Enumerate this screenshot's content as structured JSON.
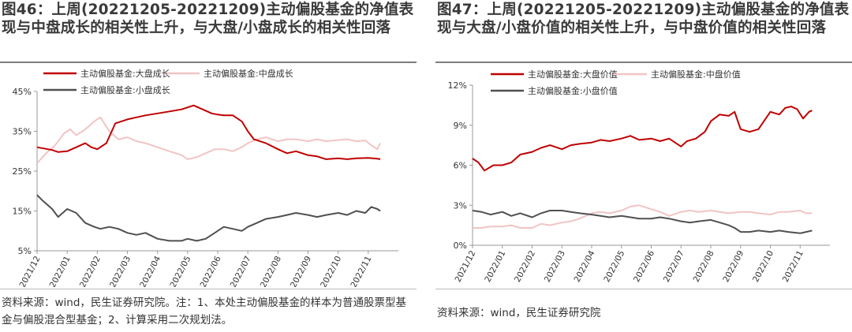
{
  "colors": {
    "large": "#c00000",
    "mid": "#f2c4c4",
    "small": "#505050",
    "axis": "#999999"
  },
  "figures": [
    {
      "title": "图46：上周(20221205-20221209)主动偏股基金的净值表现与中盘成长的相关性上升，与大盘/小盘成长的相关性回落",
      "note": "资料来源：wind，民生证券研究院。注：1、本处主动偏股基金的样本为普通股票型基金与偏股混合型基金；2、计算采用二次规划法。"
    },
    {
      "title": "图47：上周(20221205-20221209)主动偏股基金的净值表现与大盘/小盘价值的相关性上升，与中盘价值的相关性回落",
      "note": "资料来源：wind，民生证券研究院"
    }
  ],
  "chart_data": [
    {
      "type": "line",
      "ylim": [
        5,
        45
      ],
      "yticks": [
        5,
        15,
        25,
        35,
        45
      ],
      "yticklabels": [
        "5%",
        "15%",
        "25%",
        "35%",
        "45%"
      ],
      "xlim": [
        0,
        12
      ],
      "xticks": [
        0,
        1,
        2,
        3,
        4,
        5,
        6,
        7,
        8,
        9,
        10,
        11
      ],
      "xticklabels": [
        "2021/12",
        "2022/01",
        "2022/02",
        "2022/03",
        "2022/04",
        "2022/05",
        "2022/06",
        "2022/07",
        "2022/08",
        "2022/09",
        "2022/10",
        "2022/11"
      ],
      "legend": [
        "主动偏股基金:大盘成长",
        "主动偏股基金:中盘成长",
        "主动偏股基金:小盘成长"
      ],
      "series": [
        {
          "name": "主动偏股基金:大盘成长",
          "key": "large",
          "x": [
            0.0,
            0.5,
            0.7,
            1.0,
            1.3,
            1.6,
            1.8,
            2.0,
            2.3,
            2.6,
            2.8,
            3.0,
            3.3,
            3.6,
            4.0,
            4.4,
            4.8,
            5.0,
            5.2,
            5.5,
            5.8,
            6.0,
            6.2,
            6.5,
            6.8,
            7.0,
            7.2,
            7.6,
            8.0,
            8.3,
            8.6,
            9.0,
            9.3,
            9.6,
            10.0,
            10.3,
            10.6,
            11.0,
            11.3,
            11.4
          ],
          "y": [
            31,
            30.3,
            29.8,
            30,
            31,
            32,
            31,
            30.5,
            32,
            37,
            37.5,
            38,
            38.5,
            39,
            39.5,
            40,
            40.5,
            41,
            41.5,
            40.5,
            39.5,
            39.2,
            39,
            39,
            37.5,
            35,
            33,
            32,
            30.5,
            29.5,
            30,
            29,
            28.7,
            28,
            28.2,
            28,
            28.2,
            28.3,
            28.1,
            28
          ]
        },
        {
          "name": "主动偏股基金:中盘成长",
          "key": "mid",
          "x": [
            0.0,
            0.3,
            0.6,
            0.9,
            1.1,
            1.3,
            1.6,
            1.9,
            2.1,
            2.4,
            2.7,
            3.0,
            3.3,
            3.6,
            4.0,
            4.4,
            4.8,
            5.0,
            5.3,
            5.6,
            5.9,
            6.2,
            6.5,
            6.8,
            7.0,
            7.3,
            7.6,
            8.0,
            8.3,
            8.6,
            9.0,
            9.3,
            9.6,
            10.0,
            10.3,
            10.6,
            10.9,
            11.1,
            11.3,
            11.4
          ],
          "y": [
            27,
            29.5,
            31.5,
            34.5,
            35.5,
            34,
            35.5,
            37.5,
            38.5,
            35,
            33,
            33.5,
            32.5,
            32,
            31,
            30,
            29,
            28,
            28.5,
            29.5,
            30.5,
            30.5,
            30,
            31,
            32,
            33,
            33.5,
            32.5,
            33,
            33,
            32.5,
            33,
            32.5,
            32.8,
            33,
            32.5,
            32.7,
            31.5,
            30.5,
            32
          ]
        },
        {
          "name": "主动偏股基金:小盘成长",
          "key": "small",
          "x": [
            0.0,
            0.2,
            0.5,
            0.7,
            1.0,
            1.3,
            1.6,
            1.9,
            2.1,
            2.4,
            2.7,
            3.0,
            3.3,
            3.6,
            4.0,
            4.4,
            4.8,
            5.0,
            5.3,
            5.6,
            5.9,
            6.2,
            6.5,
            6.8,
            7.0,
            7.3,
            7.6,
            8.0,
            8.3,
            8.6,
            9.0,
            9.3,
            9.6,
            10.0,
            10.3,
            10.6,
            10.9,
            11.1,
            11.3,
            11.4
          ],
          "y": [
            19,
            17.5,
            15.5,
            13.5,
            15.5,
            14.5,
            12,
            11,
            10.5,
            11,
            10.5,
            9.5,
            9,
            9.5,
            8,
            7.5,
            7.5,
            8,
            7.5,
            8,
            9.5,
            11,
            10.5,
            10,
            11,
            12,
            13,
            13.5,
            14,
            14.5,
            14,
            13.5,
            14,
            14.5,
            14,
            15,
            14.5,
            16,
            15.5,
            15
          ]
        }
      ]
    },
    {
      "type": "line",
      "ylim": [
        0,
        12
      ],
      "yticks": [
        0,
        3,
        6,
        9,
        12
      ],
      "yticklabels": [
        "0%",
        "3%",
        "6%",
        "9%",
        "12%"
      ],
      "xlim": [
        0,
        12
      ],
      "xticks": [
        0,
        1,
        2,
        3,
        4,
        5,
        6,
        7,
        8,
        9,
        10,
        11
      ],
      "xticklabels": [
        "2021/12",
        "2022/01",
        "2022/02",
        "2022/03",
        "2022/04",
        "2022/05",
        "2022/06",
        "2022/07",
        "2022/08",
        "2022/09",
        "2022/10",
        "2022/11"
      ],
      "legend": [
        "主动偏股基金:大盘价值",
        "主动偏股基金:中盘价值",
        "主动偏股基金:小盘价值"
      ],
      "series": [
        {
          "name": "主动偏股基金:大盘价值",
          "key": "large",
          "x": [
            0.0,
            0.2,
            0.4,
            0.7,
            1.0,
            1.3,
            1.6,
            2.0,
            2.3,
            2.6,
            3.0,
            3.3,
            3.6,
            4.0,
            4.3,
            4.6,
            5.0,
            5.3,
            5.6,
            6.0,
            6.3,
            6.6,
            7.0,
            7.2,
            7.5,
            7.8,
            8.0,
            8.3,
            8.6,
            8.8,
            9.0,
            9.3,
            9.6,
            10.0,
            10.3,
            10.5,
            10.7,
            10.9,
            11.1,
            11.3,
            11.4
          ],
          "y": [
            6.5,
            6.2,
            5.6,
            6.0,
            6.0,
            6.2,
            6.8,
            7.0,
            7.3,
            7.5,
            7.2,
            7.5,
            7.6,
            7.7,
            7.9,
            7.8,
            8.0,
            8.2,
            7.9,
            8.0,
            7.8,
            8.0,
            7.4,
            7.8,
            8.0,
            8.5,
            9.3,
            9.8,
            9.7,
            10.0,
            8.7,
            8.5,
            8.7,
            10.0,
            9.8,
            10.3,
            10.4,
            10.2,
            9.5,
            10.0,
            10.1
          ]
        },
        {
          "name": "主动偏股基金:中盘价值",
          "key": "mid",
          "x": [
            0.0,
            0.3,
            0.6,
            1.0,
            1.3,
            1.6,
            2.0,
            2.3,
            2.6,
            3.0,
            3.3,
            3.6,
            4.0,
            4.3,
            4.6,
            5.0,
            5.3,
            5.6,
            6.0,
            6.3,
            6.6,
            7.0,
            7.3,
            7.6,
            8.0,
            8.3,
            8.6,
            9.0,
            9.3,
            9.6,
            10.0,
            10.3,
            10.6,
            11.0,
            11.2,
            11.4
          ],
          "y": [
            1.3,
            1.3,
            1.4,
            1.4,
            1.5,
            1.3,
            1.3,
            1.6,
            1.5,
            1.7,
            1.8,
            2.0,
            2.4,
            2.5,
            2.4,
            2.6,
            2.9,
            3.0,
            2.7,
            2.5,
            2.2,
            2.5,
            2.6,
            2.5,
            2.6,
            2.5,
            2.4,
            2.5,
            2.5,
            2.4,
            2.3,
            2.5,
            2.5,
            2.6,
            2.4,
            2.4
          ]
        },
        {
          "name": "主动偏股基金:小盘价值",
          "key": "small",
          "x": [
            0.0,
            0.3,
            0.6,
            1.0,
            1.3,
            1.6,
            2.0,
            2.3,
            2.6,
            3.0,
            3.3,
            3.6,
            4.0,
            4.3,
            4.6,
            5.0,
            5.3,
            5.6,
            6.0,
            6.3,
            6.6,
            7.0,
            7.3,
            7.6,
            8.0,
            8.3,
            8.6,
            8.8,
            9.0,
            9.3,
            9.6,
            10.0,
            10.3,
            10.6,
            11.0,
            11.2,
            11.4
          ],
          "y": [
            2.6,
            2.5,
            2.3,
            2.5,
            2.2,
            2.4,
            2.1,
            2.4,
            2.6,
            2.6,
            2.5,
            2.4,
            2.3,
            2.2,
            2.1,
            2.2,
            2.1,
            2.0,
            2.0,
            2.1,
            2.0,
            1.8,
            1.7,
            1.8,
            1.9,
            1.7,
            1.5,
            1.3,
            1.0,
            1.0,
            1.1,
            1.0,
            1.1,
            1.0,
            0.9,
            1.0,
            1.1
          ]
        }
      ]
    }
  ]
}
